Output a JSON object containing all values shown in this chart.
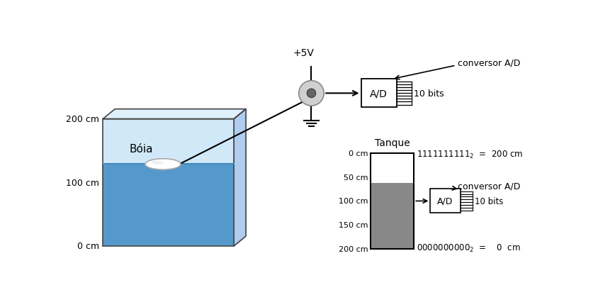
{
  "bg_color": "#ffffff",
  "water_color": "#5599cc",
  "water_light_color": "#d0e8f8",
  "tank_top_color": "#e0f0fa",
  "tank_right_color": "#b0ccee",
  "gray_color": "#888888",
  "outline_color": "#444444",
  "label_200cm": "200 cm",
  "label_100cm": "100 cm",
  "label_0cm": "0 cm",
  "label_boia": "Bóia",
  "label_tanque": "Tanque",
  "label_plus5v": "+5V",
  "label_ad": "A/D",
  "label_10bits": "10 bits",
  "label_conversor": "conversor A/D",
  "tank2_labels": [
    "200 cm",
    "150 cm",
    "100 cm",
    "50 cm",
    "0 cm"
  ]
}
